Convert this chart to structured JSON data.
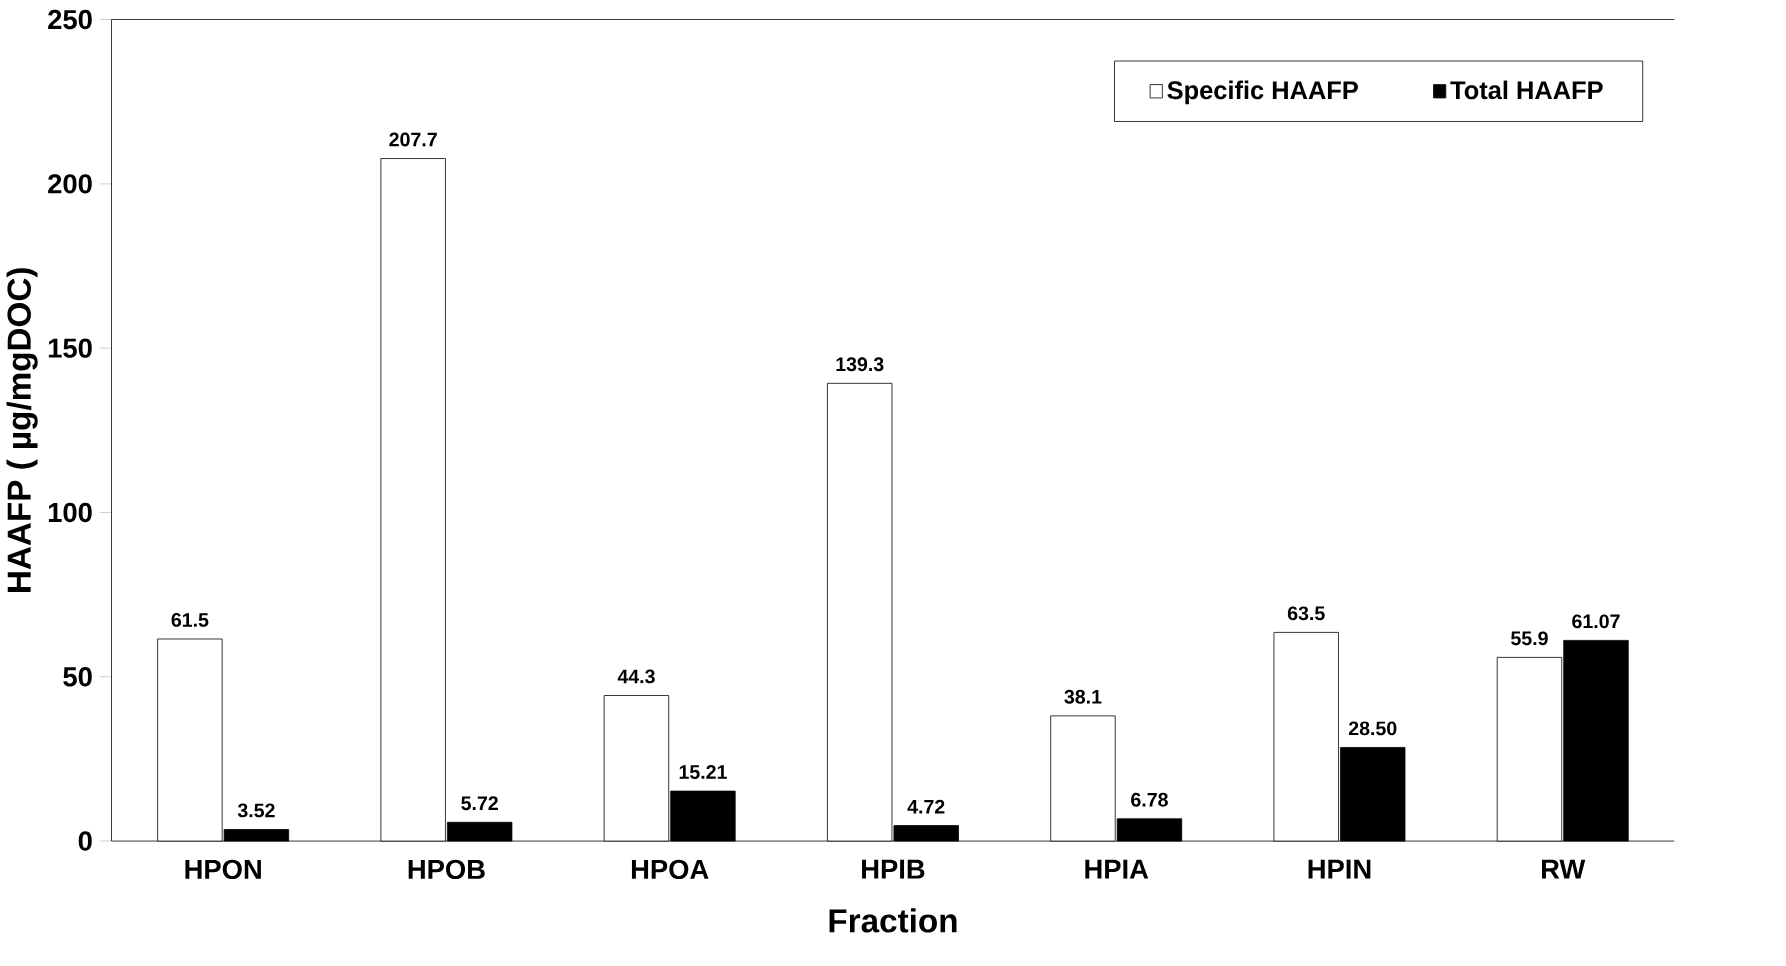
{
  "chart_data": {
    "type": "bar",
    "xlabel": "Fraction",
    "ylabel": "HAAFP ( µg/mgDOC)",
    "categories": [
      "HPON",
      "HPOB",
      "HPOA",
      "HPIB",
      "HPIA",
      "HPIN",
      "RW"
    ],
    "series": [
      {
        "name": "Specific HAAFP",
        "color": "#ffffff",
        "values": [
          61.5,
          207.7,
          44.3,
          139.3,
          38.1,
          63.5,
          55.9
        ],
        "value_labels": [
          "61.5",
          "207.7",
          "44.3",
          "139.3",
          "38.1",
          "63.5",
          "55.9"
        ]
      },
      {
        "name": "Total HAAFP",
        "color": "#000000",
        "values": [
          3.52,
          5.72,
          15.21,
          4.72,
          6.78,
          28.5,
          61.07
        ],
        "value_labels": [
          "3.52",
          "5.72",
          "15.21",
          "4.72",
          "6.78",
          "28.50",
          "61.07"
        ]
      }
    ],
    "ylim": [
      0,
      250
    ],
    "yticks": [
      0,
      50,
      100,
      150,
      200,
      250
    ],
    "legend": "top right",
    "grid": false
  }
}
